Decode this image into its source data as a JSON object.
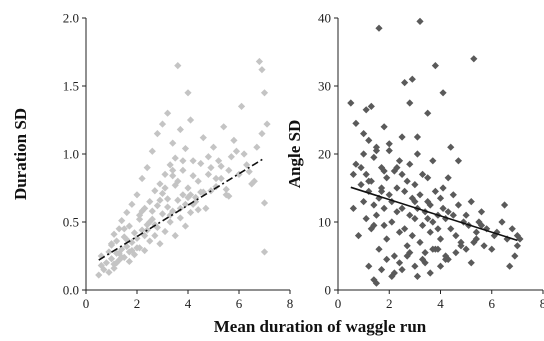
{
  "chart_data": [
    {
      "type": "scatter",
      "ylabel": "Duration SD",
      "xlim": [
        0,
        8
      ],
      "ylim": [
        0,
        2.0
      ],
      "xticks": [
        "0",
        "2",
        "4",
        "6",
        "8"
      ],
      "yticks": [
        "0.0",
        "0.5",
        "1.0",
        "1.5",
        "2.0"
      ],
      "point_color": "#c4c4c4",
      "trend_color": "#111111",
      "trend_style": "dash-dot",
      "trendline": {
        "x": [
          0.5,
          7.0
        ],
        "y": [
          0.22,
          0.97
        ]
      },
      "points": {
        "x": [
          0.5,
          0.6,
          0.6,
          0.7,
          0.8,
          0.9,
          0.9,
          1.0,
          1.0,
          1.1,
          1.1,
          1.2,
          1.2,
          1.3,
          1.3,
          1.4,
          1.4,
          1.5,
          1.5,
          1.6,
          1.6,
          1.7,
          1.7,
          1.8,
          1.8,
          1.9,
          1.9,
          2.0,
          2.0,
          2.1,
          2.1,
          2.2,
          2.2,
          2.3,
          2.3,
          2.4,
          2.4,
          2.5,
          2.5,
          2.6,
          2.6,
          2.7,
          2.7,
          2.8,
          2.8,
          2.9,
          2.9,
          3.0,
          3.0,
          3.1,
          3.1,
          3.2,
          3.2,
          3.3,
          3.3,
          3.4,
          3.4,
          3.5,
          3.5,
          3.6,
          3.6,
          3.7,
          3.7,
          3.8,
          3.8,
          3.9,
          3.9,
          4.0,
          4.0,
          4.1,
          4.1,
          4.2,
          4.2,
          4.3,
          4.4,
          4.5,
          4.6,
          4.7,
          4.8,
          4.9,
          5.0,
          5.1,
          5.2,
          5.3,
          5.4,
          5.5,
          5.6,
          5.7,
          5.8,
          6.0,
          6.1,
          6.3,
          6.5,
          6.7,
          6.8,
          6.9,
          7.0,
          7.0,
          7.1,
          1.0,
          1.3,
          1.5,
          2.0,
          2.2,
          2.5,
          2.8,
          3.1,
          3.4,
          3.6,
          3.8,
          4.1,
          4.3,
          4.6,
          1.2,
          1.6,
          2.4,
          2.9,
          3.3,
          3.7,
          4.0,
          4.5,
          5.1,
          5.5,
          6.2,
          1.4,
          1.8,
          2.1,
          2.6,
          3.0,
          3.2,
          3.5,
          3.9,
          4.2,
          4.8,
          5.3,
          5.9,
          6.4,
          6.9,
          1.1,
          1.7,
          2.3,
          2.7,
          3.4,
          4.4,
          4.9,
          5.6,
          6.6,
          7.0
        ],
        "y": [
          0.11,
          0.18,
          0.25,
          0.15,
          0.2,
          0.28,
          0.13,
          0.23,
          0.33,
          0.19,
          0.41,
          0.27,
          0.36,
          0.22,
          0.45,
          0.3,
          0.51,
          0.24,
          0.39,
          0.32,
          0.57,
          0.28,
          0.47,
          0.35,
          0.63,
          0.26,
          0.42,
          0.38,
          0.7,
          0.31,
          0.55,
          0.44,
          0.82,
          0.29,
          0.6,
          0.48,
          0.9,
          0.36,
          0.65,
          0.52,
          1.02,
          0.4,
          0.73,
          0.46,
          1.15,
          0.34,
          0.78,
          0.56,
          1.22,
          0.43,
          0.85,
          0.61,
          1.3,
          0.5,
          0.92,
          0.58,
          1.08,
          0.4,
          0.97,
          0.66,
          1.65,
          0.53,
          1.18,
          0.7,
          0.88,
          0.47,
          1.04,
          0.75,
          1.45,
          0.57,
          1.25,
          0.63,
          0.95,
          0.68,
          0.8,
          0.72,
          1.12,
          0.6,
          0.85,
          0.9,
          1.05,
          0.76,
          0.95,
          0.82,
          1.2,
          0.7,
          0.88,
          0.98,
          1.1,
          0.85,
          1.35,
          0.92,
          0.78,
          1.05,
          1.68,
          1.62,
          1.45,
          0.28,
          1.22,
          0.34,
          0.27,
          0.45,
          0.31,
          0.58,
          0.5,
          0.62,
          0.75,
          0.88,
          0.8,
          0.95,
          0.7,
          0.65,
          0.72,
          0.2,
          0.37,
          0.44,
          0.66,
          0.55,
          0.6,
          0.68,
          0.93,
          0.82,
          0.74,
          1.0,
          0.24,
          0.29,
          0.52,
          0.58,
          0.71,
          0.67,
          0.77,
          0.63,
          0.84,
          0.98,
          0.91,
          1.02,
          0.87,
          1.15,
          0.16,
          0.21,
          0.4,
          0.48,
          0.84,
          0.59,
          0.73,
          0.69,
          0.8,
          0.64
        ]
      }
    },
    {
      "type": "scatter",
      "ylabel": "Angle SD",
      "xlim": [
        0,
        8
      ],
      "ylim": [
        0,
        40
      ],
      "xticks": [
        "0",
        "2",
        "4",
        "6",
        "8"
      ],
      "yticks": [
        "0",
        "10",
        "20",
        "30",
        "40"
      ],
      "point_color": "#5a5a5a",
      "trend_color": "#111111",
      "trend_style": "solid",
      "trendline": {
        "x": [
          0.5,
          7.0
        ],
        "y": [
          15.1,
          7.3
        ]
      },
      "points": {
        "x": [
          0.5,
          0.6,
          0.7,
          0.8,
          0.9,
          1.0,
          1.0,
          1.1,
          1.1,
          1.2,
          1.2,
          1.3,
          1.3,
          1.4,
          1.4,
          1.5,
          1.5,
          1.6,
          1.6,
          1.7,
          1.7,
          1.8,
          1.8,
          1.9,
          1.9,
          2.0,
          2.0,
          2.1,
          2.1,
          2.2,
          2.2,
          2.3,
          2.3,
          2.4,
          2.4,
          2.5,
          2.5,
          2.6,
          2.6,
          2.7,
          2.7,
          2.8,
          2.8,
          2.9,
          2.9,
          3.0,
          3.0,
          3.1,
          3.1,
          3.2,
          3.2,
          3.3,
          3.3,
          3.4,
          3.4,
          3.5,
          3.5,
          3.6,
          3.6,
          3.7,
          3.7,
          3.8,
          3.8,
          3.9,
          3.9,
          4.0,
          4.0,
          4.1,
          4.1,
          4.2,
          4.2,
          4.3,
          4.4,
          4.5,
          4.6,
          4.7,
          4.8,
          4.9,
          5.0,
          5.1,
          5.2,
          5.3,
          5.4,
          5.5,
          5.6,
          5.8,
          6.0,
          6.2,
          6.4,
          6.6,
          6.8,
          6.9,
          7.0,
          7.0,
          1.1,
          1.3,
          1.6,
          1.8,
          2.0,
          2.3,
          2.6,
          2.9,
          3.2,
          3.5,
          3.8,
          4.1,
          4.4,
          4.7,
          1.2,
          1.5,
          1.9,
          2.2,
          2.5,
          2.8,
          3.1,
          3.4,
          3.7,
          4.0,
          4.3,
          4.6,
          5.0,
          5.4,
          1.4,
          1.7,
          2.1,
          2.4,
          2.7,
          3.0,
          3.3,
          3.6,
          3.9,
          4.2,
          4.8,
          5.2,
          5.7,
          6.1,
          6.7,
          0.7,
          0.9,
          1.0,
          1.2,
          1.5,
          1.8,
          2.8,
          3.1,
          4.3,
          5.3,
          0.6,
          1.4,
          2.5,
          3.0,
          3.5,
          4.5,
          5.6,
          6.5,
          7.1,
          1.7
        ],
        "y": [
          27.5,
          12.0,
          18.5,
          8.0,
          15.5,
          13.0,
          20.0,
          10.5,
          17.0,
          14.5,
          22.0,
          9.0,
          16.0,
          12.5,
          19.5,
          11.0,
          21.0,
          13.5,
          6.0,
          15.0,
          18.0,
          9.5,
          12.0,
          16.5,
          7.5,
          14.0,
          20.5,
          10.0,
          13.0,
          17.5,
          5.0,
          11.5,
          15.0,
          8.5,
          19.0,
          12.0,
          22.5,
          9.0,
          14.5,
          16.0,
          6.5,
          11.0,
          18.5,
          13.5,
          8.0,
          10.5,
          15.5,
          12.0,
          20.0,
          7.0,
          14.0,
          9.5,
          17.0,
          11.5,
          5.5,
          13.0,
          16.5,
          8.5,
          12.5,
          10.0,
          19.0,
          14.5,
          6.0,
          11.0,
          9.0,
          13.5,
          7.5,
          12.0,
          15.0,
          10.5,
          4.5,
          11.5,
          9.0,
          14.0,
          8.0,
          12.5,
          6.5,
          10.0,
          11.0,
          9.5,
          13.0,
          7.0,
          8.5,
          10.0,
          11.5,
          9.0,
          6.0,
          8.5,
          10.0,
          7.5,
          9.0,
          5.0,
          6.5,
          8.0,
          26.5,
          27.0,
          38.5,
          24.0,
          21.5,
          18.0,
          30.5,
          31.0,
          39.5,
          26.0,
          33.0,
          29.0,
          21.0,
          19.0,
          3.5,
          1.0,
          4.5,
          2.5,
          3.0,
          5.5,
          2.0,
          4.0,
          6.0,
          3.5,
          4.5,
          5.5,
          6.0,
          7.5,
          1.5,
          3.0,
          2.0,
          4.0,
          5.0,
          3.5,
          4.5,
          2.5,
          6.0,
          5.0,
          7.0,
          4.0,
          6.5,
          8.0,
          3.5,
          24.5,
          18.0,
          23.0,
          16.0,
          20.5,
          17.5,
          27.5,
          22.5,
          16.5,
          34.0,
          17.0,
          9.5,
          17.0,
          13.0,
          10.5,
          11.0,
          9.5,
          12.5,
          7.5,
          14.5
        ]
      }
    }
  ],
  "shared_xlabel": "Mean duration of waggle run"
}
